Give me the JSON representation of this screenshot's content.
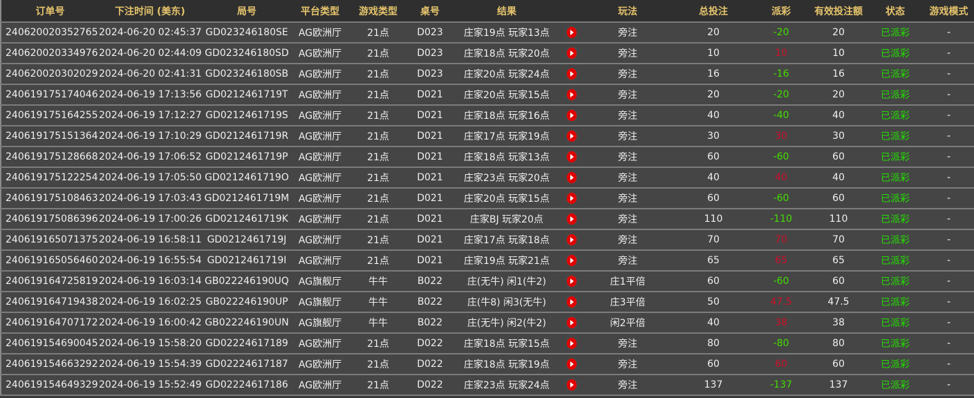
{
  "headers": [
    "订单号",
    "下注时间 (美东)",
    "局号",
    "平台类型",
    "游戏类型",
    "桌号",
    "结果",
    "",
    "玩法",
    "总投注",
    "派彩",
    "有效投注额",
    "状态",
    "游戏模式"
  ],
  "colors": {
    "header_text": "#e6c46c",
    "negative_payout": "#44dd00",
    "positive_payout": "#d0102a",
    "status": "#22e000",
    "play_icon": "#e00000"
  },
  "rows": [
    {
      "order": "240620020352765",
      "time": "2024-06-20 02:45:37",
      "round": "GD023246180SE",
      "platform": "AG欧洲厅",
      "game": "21点",
      "table": "D023",
      "result": "庄家19点 玩家13点",
      "play": "旁注",
      "bet": "20",
      "payout": "-20",
      "valid": "20",
      "status": "已派彩",
      "mode": "-"
    },
    {
      "order": "240620020334976",
      "time": "2024-06-20 02:44:09",
      "round": "GD023246180SD",
      "platform": "AG欧洲厅",
      "game": "21点",
      "table": "D023",
      "result": "庄家18点 玩家20点",
      "play": "旁注",
      "bet": "10",
      "payout": "10",
      "valid": "10",
      "status": "已派彩",
      "mode": "-"
    },
    {
      "order": "240620020302029",
      "time": "2024-06-20 02:41:31",
      "round": "GD023246180SB",
      "platform": "AG欧洲厅",
      "game": "21点",
      "table": "D023",
      "result": "庄家20点 玩家24点",
      "play": "旁注",
      "bet": "16",
      "payout": "-16",
      "valid": "16",
      "status": "已派彩",
      "mode": "-"
    },
    {
      "order": "240619175174046",
      "time": "2024-06-19 17:13:56",
      "round": "GD0212461719T",
      "platform": "AG欧洲厅",
      "game": "21点",
      "table": "D021",
      "result": "庄家20点 玩家15点",
      "play": "旁注",
      "bet": "20",
      "payout": "-20",
      "valid": "20",
      "status": "已派彩",
      "mode": "-"
    },
    {
      "order": "240619175164255",
      "time": "2024-06-19 17:12:27",
      "round": "GD0212461719S",
      "platform": "AG欧洲厅",
      "game": "21点",
      "table": "D021",
      "result": "庄家18点 玩家16点",
      "play": "旁注",
      "bet": "40",
      "payout": "-40",
      "valid": "40",
      "status": "已派彩",
      "mode": "-"
    },
    {
      "order": "240619175151364",
      "time": "2024-06-19 17:10:29",
      "round": "GD0212461719R",
      "platform": "AG欧洲厅",
      "game": "21点",
      "table": "D021",
      "result": "庄家17点 玩家19点",
      "play": "旁注",
      "bet": "30",
      "payout": "30",
      "valid": "30",
      "status": "已派彩",
      "mode": "-"
    },
    {
      "order": "240619175128668",
      "time": "2024-06-19 17:06:52",
      "round": "GD0212461719P",
      "platform": "AG欧洲厅",
      "game": "21点",
      "table": "D021",
      "result": "庄家18点 玩家13点",
      "play": "旁注",
      "bet": "60",
      "payout": "-60",
      "valid": "60",
      "status": "已派彩",
      "mode": "-"
    },
    {
      "order": "240619175122254",
      "time": "2024-06-19 17:05:50",
      "round": "GD0212461719O",
      "platform": "AG欧洲厅",
      "game": "21点",
      "table": "D021",
      "result": "庄家23点 玩家20点",
      "play": "旁注",
      "bet": "40",
      "payout": "40",
      "valid": "40",
      "status": "已派彩",
      "mode": "-"
    },
    {
      "order": "240619175108463",
      "time": "2024-06-19 17:03:43",
      "round": "GD0212461719M",
      "platform": "AG欧洲厅",
      "game": "21点",
      "table": "D021",
      "result": "庄家20点 玩家15点",
      "play": "旁注",
      "bet": "60",
      "payout": "-60",
      "valid": "60",
      "status": "已派彩",
      "mode": "-"
    },
    {
      "order": "240619175086396",
      "time": "2024-06-19 17:00:26",
      "round": "GD0212461719K",
      "platform": "AG欧洲厅",
      "game": "21点",
      "table": "D021",
      "result": "庄家BJ 玩家20点",
      "play": "旁注",
      "bet": "110",
      "payout": "-110",
      "valid": "110",
      "status": "已派彩",
      "mode": "-"
    },
    {
      "order": "240619165071375",
      "time": "2024-06-19 16:58:11",
      "round": "GD0212461719J",
      "platform": "AG欧洲厅",
      "game": "21点",
      "table": "D021",
      "result": "庄家17点 玩家18点",
      "play": "旁注",
      "bet": "70",
      "payout": "70",
      "valid": "70",
      "status": "已派彩",
      "mode": "-"
    },
    {
      "order": "240619165056460",
      "time": "2024-06-19 16:55:54",
      "round": "GD0212461719I",
      "platform": "AG欧洲厅",
      "game": "21点",
      "table": "D021",
      "result": "庄家19点 玩家21点",
      "play": "旁注",
      "bet": "65",
      "payout": "65",
      "valid": "65",
      "status": "已派彩",
      "mode": "-"
    },
    {
      "order": "240619164725819",
      "time": "2024-06-19 16:03:14",
      "round": "GB022246190UQ",
      "platform": "AG旗舰厅",
      "game": "牛牛",
      "table": "B022",
      "result": "庄(无牛) 闲1(牛2)",
      "play": "庄1平倍",
      "bet": "60",
      "payout": "-60",
      "valid": "60",
      "status": "已派彩",
      "mode": "-"
    },
    {
      "order": "240619164719438",
      "time": "2024-06-19 16:02:25",
      "round": "GB022246190UP",
      "platform": "AG旗舰厅",
      "game": "牛牛",
      "table": "B022",
      "result": "庄(牛8) 闲3(无牛)",
      "play": "庄3平倍",
      "bet": "50",
      "payout": "47.5",
      "valid": "47.5",
      "status": "已派彩",
      "mode": "-"
    },
    {
      "order": "240619164707172",
      "time": "2024-06-19 16:00:42",
      "round": "GB022246190UN",
      "platform": "AG旗舰厅",
      "game": "牛牛",
      "table": "B022",
      "result": "庄(无牛) 闲2(牛2)",
      "play": "闲2平倍",
      "bet": "40",
      "payout": "38",
      "valid": "38",
      "status": "已派彩",
      "mode": "-"
    },
    {
      "order": "240619154690045",
      "time": "2024-06-19 15:58:20",
      "round": "GD02224617189",
      "platform": "AG欧洲厅",
      "game": "21点",
      "table": "D022",
      "result": "庄家18点 玩家15点",
      "play": "旁注",
      "bet": "80",
      "payout": "-80",
      "valid": "80",
      "status": "已派彩",
      "mode": "-"
    },
    {
      "order": "240619154663292",
      "time": "2024-06-19 15:54:39",
      "round": "GD02224617187",
      "platform": "AG欧洲厅",
      "game": "21点",
      "table": "D022",
      "result": "庄家18点 玩家19点",
      "play": "旁注",
      "bet": "60",
      "payout": "60",
      "valid": "60",
      "status": "已派彩",
      "mode": "-"
    },
    {
      "order": "240619154649329",
      "time": "2024-06-19 15:52:49",
      "round": "GD02224617186",
      "platform": "AG欧洲厅",
      "game": "21点",
      "table": "D022",
      "result": "庄家23点 玩家24点",
      "play": "旁注",
      "bet": "137",
      "payout": "-137",
      "valid": "137",
      "status": "已派彩",
      "mode": "-"
    }
  ]
}
